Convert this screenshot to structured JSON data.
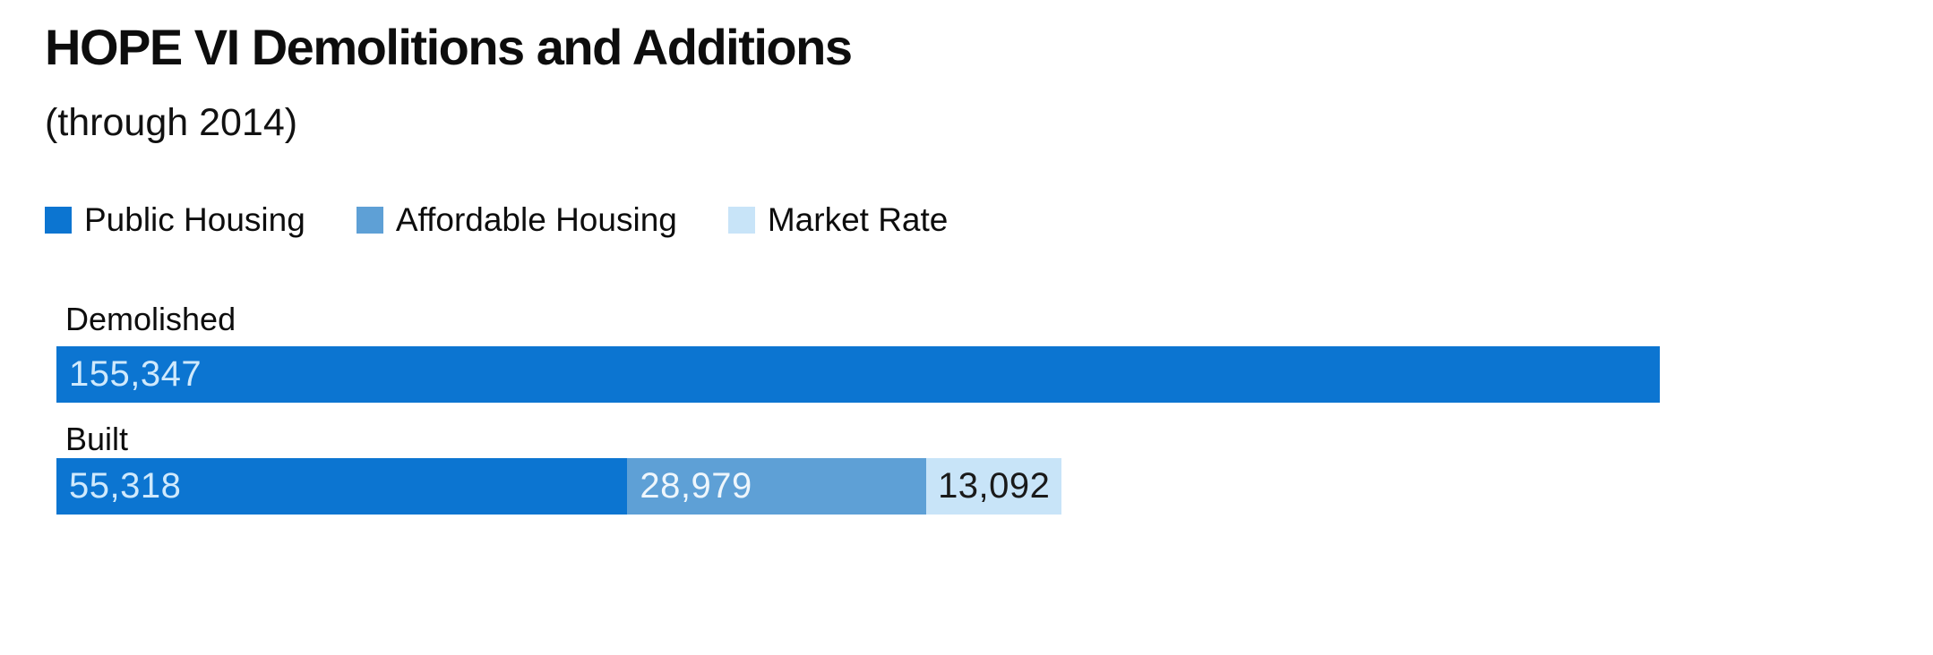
{
  "header": {
    "title": "HOPE VI Demolitions and Additions",
    "subtitle": "(through 2014)"
  },
  "legend": {
    "items": [
      {
        "label": "Public Housing",
        "color": "#0c75d1"
      },
      {
        "label": "Affordable Housing",
        "color": "#5ea0d6"
      },
      {
        "label": "Market Rate",
        "color": "#c8e4f8"
      }
    ]
  },
  "chart_data": {
    "type": "bar",
    "orientation": "horizontal",
    "stacked": true,
    "grid": false,
    "legend_position": "top",
    "title": "HOPE VI Demolitions and Additions",
    "subtitle": "(through 2014)",
    "categories": [
      "Demolished",
      "Built"
    ],
    "series": [
      {
        "name": "Public Housing",
        "color": "#0c75d1",
        "values": [
          155347,
          55318
        ]
      },
      {
        "name": "Affordable Housing",
        "color": "#5ea0d6",
        "values": [
          0,
          28979
        ]
      },
      {
        "name": "Market Rate",
        "color": "#c8e4f8",
        "values": [
          0,
          13092
        ]
      }
    ],
    "xmax": 155347,
    "rows": [
      {
        "label": "Demolished",
        "segments": [
          {
            "series": "Public Housing",
            "value": 155347,
            "value_label": "155,347",
            "color": "#0c75d1",
            "text_color": "#cfe9fc",
            "value_align": "left"
          }
        ]
      },
      {
        "label": "Built",
        "segments": [
          {
            "series": "Public Housing",
            "value": 55318,
            "value_label": "55,318",
            "color": "#0c75d1",
            "text_color": "#cfe9fc",
            "value_align": "left"
          },
          {
            "series": "Affordable Housing",
            "value": 28979,
            "value_label": "28,979",
            "color": "#5ea0d6",
            "text_color": "#eef6fc",
            "value_align": "left"
          },
          {
            "series": "Market Rate",
            "value": 13092,
            "value_label": "13,092",
            "color": "#c8e4f8",
            "text_color": "#1a1a1a",
            "value_align": "center"
          }
        ]
      }
    ]
  }
}
